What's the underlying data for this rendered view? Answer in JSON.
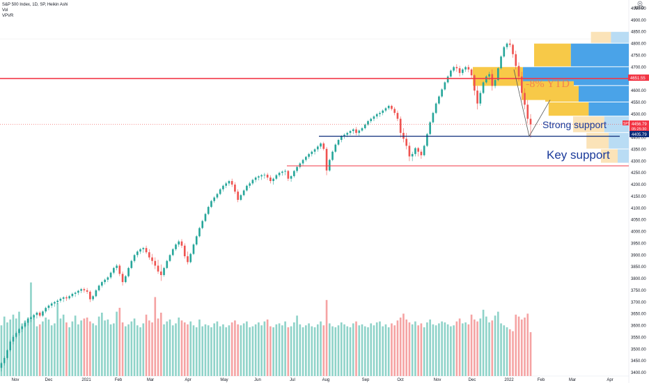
{
  "header": {
    "symbol": "S&P 500 Index, 1D, SP, Heikin Ashi",
    "indicator_vol": "Vol",
    "indicator_vpvr": "VPVR"
  },
  "colors": {
    "bull": "#26a69a",
    "bear": "#ef5350",
    "bull_vol": "#8fd3c9",
    "bear_vol": "#f5a3a3",
    "profile_up": "#f7c948",
    "profile_up_light": "#fbe3b8",
    "profile_down": "#4aa3e8",
    "profile_down_light": "#b9dcf4",
    "resistance": "#f23645",
    "support": "#0c2c7a",
    "annotation": "#1a3a9a"
  },
  "chart_data": {
    "type": "candlestick",
    "price_range": [
      3400,
      4950
    ],
    "price_ticks": [
      "4950.00",
      "4900.00",
      "4850.00",
      "4800.00",
      "4750.00",
      "4700.00",
      "4650.00",
      "4600.00",
      "4550.00",
      "4500.00",
      "4450.00",
      "4400.00",
      "4350.00",
      "4300.00",
      "4250.00",
      "4200.00",
      "4150.00",
      "4100.00",
      "4050.00",
      "4000.00",
      "3950.00",
      "3900.00",
      "3850.00",
      "3800.00",
      "3750.00",
      "3700.00",
      "3650.00",
      "3600.00",
      "3550.00",
      "3500.00",
      "3450.00",
      "3400.00"
    ],
    "time_labels": [
      "Nov",
      "Dec",
      "2021",
      "Feb",
      "Mar",
      "Apr",
      "May",
      "Jun",
      "Jul",
      "Aug",
      "Sep",
      "Oct",
      "Nov",
      "Dec",
      "2022",
      "Feb",
      "Mar",
      "Apr"
    ],
    "currency_label": "USD",
    "last_price": "4456.79",
    "countdown": "05:25:30",
    "support_price_label": "4405.79",
    "resistance_price_label": "4651.55",
    "symbol_badge": "SPX",
    "resistance_level": 4651.55,
    "strong_support_level": 4405.79,
    "key_support_level": 4280,
    "annotations": {
      "ytd": "-8% YTD",
      "strong_support": "Strong support",
      "key_support": "Key support"
    },
    "candles": [
      [
        0,
        3420,
        3445,
        3405,
        3440
      ],
      [
        1,
        3440,
        3470,
        3430,
        3462
      ],
      [
        2,
        3462,
        3500,
        3455,
        3495
      ],
      [
        3,
        3495,
        3540,
        3488,
        3532
      ],
      [
        4,
        3532,
        3560,
        3520,
        3552
      ],
      [
        5,
        3552,
        3575,
        3545,
        3568
      ],
      [
        6,
        3568,
        3590,
        3558,
        3585
      ],
      [
        7,
        3585,
        3600,
        3572,
        3596
      ],
      [
        8,
        3596,
        3620,
        3590,
        3612
      ],
      [
        9,
        3612,
        3635,
        3600,
        3628
      ],
      [
        10,
        3628,
        3640,
        3615,
        3635
      ],
      [
        11,
        3635,
        3650,
        3625,
        3645
      ],
      [
        12,
        3645,
        3660,
        3630,
        3655
      ],
      [
        13,
        3655,
        3662,
        3635,
        3642
      ],
      [
        14,
        3642,
        3665,
        3636,
        3660
      ],
      [
        15,
        3660,
        3680,
        3652,
        3675
      ],
      [
        16,
        3675,
        3690,
        3665,
        3685
      ],
      [
        17,
        3685,
        3700,
        3675,
        3694
      ],
      [
        18,
        3694,
        3705,
        3680,
        3700
      ],
      [
        19,
        3700,
        3712,
        3690,
        3706
      ],
      [
        20,
        3706,
        3720,
        3698,
        3714
      ],
      [
        21,
        3714,
        3725,
        3700,
        3720
      ],
      [
        22,
        3720,
        3728,
        3705,
        3716
      ],
      [
        23,
        3716,
        3730,
        3710,
        3725
      ],
      [
        24,
        3725,
        3740,
        3718,
        3735
      ],
      [
        25,
        3735,
        3745,
        3722,
        3740
      ],
      [
        26,
        3740,
        3752,
        3730,
        3748
      ],
      [
        27,
        3748,
        3760,
        3738,
        3755
      ],
      [
        28,
        3755,
        3762,
        3740,
        3750
      ],
      [
        29,
        3750,
        3760,
        3735,
        3744
      ],
      [
        30,
        3744,
        3750,
        3700,
        3712
      ],
      [
        31,
        3712,
        3730,
        3705,
        3725
      ],
      [
        32,
        3725,
        3755,
        3720,
        3750
      ],
      [
        33,
        3750,
        3775,
        3745,
        3770
      ],
      [
        34,
        3770,
        3790,
        3762,
        3785
      ],
      [
        35,
        3785,
        3800,
        3775,
        3795
      ],
      [
        36,
        3795,
        3810,
        3785,
        3805
      ],
      [
        37,
        3805,
        3830,
        3798,
        3825
      ],
      [
        38,
        3825,
        3850,
        3818,
        3845
      ],
      [
        39,
        3845,
        3862,
        3835,
        3855
      ],
      [
        40,
        3855,
        3862,
        3810,
        3820
      ],
      [
        41,
        3820,
        3830,
        3770,
        3785
      ],
      [
        42,
        3785,
        3815,
        3780,
        3810
      ],
      [
        43,
        3810,
        3850,
        3805,
        3845
      ],
      [
        44,
        3845,
        3880,
        3840,
        3875
      ],
      [
        45,
        3875,
        3905,
        3868,
        3900
      ],
      [
        46,
        3900,
        3920,
        3890,
        3915
      ],
      [
        47,
        3915,
        3930,
        3905,
        3925
      ],
      [
        48,
        3925,
        3935,
        3910,
        3930
      ],
      [
        49,
        3930,
        3940,
        3905,
        3912
      ],
      [
        50,
        3912,
        3925,
        3880,
        3890
      ],
      [
        51,
        3890,
        3905,
        3860,
        3875
      ],
      [
        52,
        3875,
        3890,
        3840,
        3855
      ],
      [
        53,
        3855,
        3880,
        3820,
        3830
      ],
      [
        54,
        3830,
        3860,
        3790,
        3815
      ],
      [
        55,
        3815,
        3850,
        3808,
        3845
      ],
      [
        56,
        3845,
        3880,
        3840,
        3875
      ],
      [
        57,
        3875,
        3905,
        3870,
        3900
      ],
      [
        58,
        3900,
        3930,
        3895,
        3925
      ],
      [
        59,
        3925,
        3950,
        3918,
        3945
      ],
      [
        60,
        3945,
        3965,
        3935,
        3958
      ],
      [
        61,
        3958,
        3968,
        3930,
        3940
      ],
      [
        62,
        3940,
        3950,
        3885,
        3895
      ],
      [
        63,
        3895,
        3915,
        3860,
        3870
      ],
      [
        64,
        3870,
        3910,
        3865,
        3905
      ],
      [
        65,
        3905,
        3950,
        3900,
        3945
      ],
      [
        66,
        3945,
        3985,
        3940,
        3980
      ],
      [
        67,
        3980,
        4020,
        3975,
        4015
      ],
      [
        68,
        4015,
        4050,
        4010,
        4045
      ],
      [
        69,
        4045,
        4080,
        4040,
        4075
      ],
      [
        70,
        4075,
        4110,
        4070,
        4105
      ],
      [
        71,
        4105,
        4135,
        4100,
        4130
      ],
      [
        72,
        4130,
        4150,
        4122,
        4145
      ],
      [
        73,
        4145,
        4165,
        4138,
        4160
      ],
      [
        74,
        4160,
        4185,
        4155,
        4180
      ],
      [
        75,
        4180,
        4200,
        4170,
        4195
      ],
      [
        76,
        4195,
        4212,
        4185,
        4205
      ],
      [
        77,
        4205,
        4220,
        4195,
        4215
      ],
      [
        78,
        4215,
        4225,
        4190,
        4200
      ],
      [
        79,
        4200,
        4210,
        4160,
        4170
      ],
      [
        80,
        4170,
        4180,
        4125,
        4135
      ],
      [
        81,
        4135,
        4160,
        4130,
        4155
      ],
      [
        82,
        4155,
        4180,
        4150,
        4175
      ],
      [
        83,
        4175,
        4200,
        4170,
        4195
      ],
      [
        84,
        4195,
        4212,
        4185,
        4205
      ],
      [
        85,
        4205,
        4225,
        4198,
        4220
      ],
      [
        86,
        4220,
        4235,
        4210,
        4230
      ],
      [
        87,
        4230,
        4240,
        4218,
        4235
      ],
      [
        88,
        4235,
        4245,
        4220,
        4240
      ],
      [
        89,
        4240,
        4250,
        4225,
        4242
      ],
      [
        90,
        4242,
        4250,
        4220,
        4230
      ],
      [
        91,
        4230,
        4240,
        4205,
        4215
      ],
      [
        92,
        4215,
        4230,
        4200,
        4225
      ],
      [
        93,
        4225,
        4245,
        4220,
        4240
      ],
      [
        94,
        4240,
        4255,
        4232,
        4250
      ],
      [
        95,
        4250,
        4260,
        4238,
        4255
      ],
      [
        96,
        4255,
        4265,
        4240,
        4258
      ],
      [
        97,
        4258,
        4262,
        4215,
        4225
      ],
      [
        98,
        4225,
        4240,
        4212,
        4236
      ],
      [
        99,
        4236,
        4262,
        4230,
        4258
      ],
      [
        100,
        4258,
        4280,
        4250,
        4275
      ],
      [
        101,
        4275,
        4295,
        4268,
        4290
      ],
      [
        102,
        4290,
        4310,
        4282,
        4305
      ],
      [
        103,
        4305,
        4322,
        4298,
        4318
      ],
      [
        104,
        4318,
        4335,
        4310,
        4330
      ],
      [
        105,
        4330,
        4345,
        4320,
        4340
      ],
      [
        106,
        4340,
        4355,
        4328,
        4350
      ],
      [
        107,
        4350,
        4368,
        4340,
        4362
      ],
      [
        108,
        4362,
        4380,
        4352,
        4375
      ],
      [
        109,
        4375,
        4382,
        4345,
        4352
      ],
      [
        110,
        4352,
        4360,
        4240,
        4260
      ],
      [
        111,
        4260,
        4310,
        4255,
        4305
      ],
      [
        112,
        4305,
        4345,
        4300,
        4340
      ],
      [
        113,
        4340,
        4375,
        4335,
        4370
      ],
      [
        114,
        4370,
        4395,
        4365,
        4390
      ],
      [
        115,
        4390,
        4410,
        4380,
        4405
      ],
      [
        116,
        4405,
        4418,
        4395,
        4412
      ],
      [
        117,
        4412,
        4425,
        4402,
        4420
      ],
      [
        118,
        4420,
        4432,
        4410,
        4428
      ],
      [
        119,
        4428,
        4440,
        4415,
        4435
      ],
      [
        120,
        4435,
        4445,
        4410,
        4420
      ],
      [
        121,
        4420,
        4435,
        4405,
        4430
      ],
      [
        122,
        4430,
        4445,
        4425,
        4440
      ],
      [
        123,
        4440,
        4460,
        4435,
        4455
      ],
      [
        124,
        4455,
        4475,
        4450,
        4470
      ],
      [
        125,
        4470,
        4485,
        4462,
        4480
      ],
      [
        126,
        4480,
        4495,
        4470,
        4490
      ],
      [
        127,
        4490,
        4505,
        4480,
        4500
      ],
      [
        128,
        4500,
        4512,
        4488,
        4505
      ],
      [
        129,
        4505,
        4520,
        4495,
        4515
      ],
      [
        130,
        4515,
        4530,
        4508,
        4525
      ],
      [
        131,
        4525,
        4540,
        4518,
        4535
      ],
      [
        132,
        4535,
        4540,
        4515,
        4522
      ],
      [
        133,
        4522,
        4530,
        4495,
        4505
      ],
      [
        134,
        4505,
        4515,
        4470,
        4480
      ],
      [
        135,
        4480,
        4490,
        4400,
        4420
      ],
      [
        136,
        4420,
        4440,
        4380,
        4395
      ],
      [
        137,
        4395,
        4420,
        4350,
        4365
      ],
      [
        138,
        4365,
        4380,
        4300,
        4320
      ],
      [
        139,
        4320,
        4340,
        4300,
        4330
      ],
      [
        140,
        4330,
        4360,
        4320,
        4355
      ],
      [
        141,
        4355,
        4360,
        4320,
        4340
      ],
      [
        142,
        4340,
        4350,
        4310,
        4325
      ],
      [
        143,
        4325,
        4370,
        4320,
        4365
      ],
      [
        144,
        4365,
        4420,
        4360,
        4415
      ],
      [
        145,
        4415,
        4470,
        4410,
        4465
      ],
      [
        146,
        4465,
        4510,
        4460,
        4505
      ],
      [
        147,
        4505,
        4550,
        4500,
        4545
      ],
      [
        148,
        4545,
        4580,
        4540,
        4575
      ],
      [
        149,
        4575,
        4610,
        4570,
        4605
      ],
      [
        150,
        4605,
        4640,
        4600,
        4635
      ],
      [
        151,
        4635,
        4665,
        4630,
        4660
      ],
      [
        152,
        4660,
        4690,
        4655,
        4685
      ],
      [
        153,
        4685,
        4705,
        4678,
        4700
      ],
      [
        154,
        4700,
        4712,
        4680,
        4695
      ],
      [
        155,
        4695,
        4705,
        4660,
        4675
      ],
      [
        156,
        4675,
        4695,
        4665,
        4690
      ],
      [
        157,
        4690,
        4705,
        4680,
        4700
      ],
      [
        158,
        4700,
        4710,
        4678,
        4690
      ],
      [
        159,
        4690,
        4695,
        4650,
        4665
      ],
      [
        160,
        4665,
        4670,
        4580,
        4600
      ],
      [
        161,
        4600,
        4620,
        4520,
        4545
      ],
      [
        162,
        4545,
        4600,
        4535,
        4590
      ],
      [
        163,
        4590,
        4640,
        4585,
        4635
      ],
      [
        164,
        4635,
        4665,
        4630,
        4660
      ],
      [
        165,
        4660,
        4680,
        4645,
        4670
      ],
      [
        166,
        4670,
        4690,
        4600,
        4620
      ],
      [
        167,
        4620,
        4650,
        4610,
        4645
      ],
      [
        168,
        4645,
        4700,
        4640,
        4695
      ],
      [
        169,
        4695,
        4750,
        4690,
        4745
      ],
      [
        170,
        4745,
        4790,
        4740,
        4785
      ],
      [
        171,
        4785,
        4805,
        4775,
        4800
      ],
      [
        172,
        4800,
        4818,
        4785,
        4795
      ],
      [
        173,
        4795,
        4800,
        4740,
        4755
      ],
      [
        174,
        4755,
        4770,
        4690,
        4705
      ],
      [
        175,
        4705,
        4720,
        4640,
        4660
      ],
      [
        176,
        4660,
        4680,
        4560,
        4590
      ],
      [
        177,
        4590,
        4610,
        4520,
        4540
      ],
      [
        178,
        4540,
        4560,
        4460,
        4480
      ],
      [
        179,
        4480,
        4500,
        4400,
        4456
      ]
    ],
    "volume_max": 10,
    "volumes": [
      5.2,
      6.1,
      5.5,
      5.8,
      6.3,
      5.9,
      6.6,
      5.4,
      5.7,
      6.0,
      9.6,
      6.2,
      5.1,
      5.3,
      5.6,
      6.0,
      5.8,
      5.2,
      5.4,
      7.5,
      5.9,
      6.3,
      5.5,
      5.0,
      5.6,
      6.2,
      5.3,
      5.7,
      5.9,
      6.0,
      5.6,
      5.4,
      5.2,
      6.1,
      6.5,
      5.7,
      5.8,
      5.3,
      5.4,
      6.6,
      7.0,
      5.5,
      5.1,
      5.3,
      5.6,
      5.9,
      5.2,
      5.0,
      5.4,
      6.3,
      5.7,
      5.5,
      8.1,
      5.9,
      6.5,
      5.3,
      5.6,
      5.8,
      5.2,
      5.4,
      6.0,
      5.7,
      5.5,
      5.3,
      5.6,
      5.2,
      5.0,
      5.8,
      5.1,
      5.3,
      5.2,
      5.0,
      5.4,
      5.6,
      5.1,
      5.3,
      5.0,
      5.2,
      5.5,
      5.7,
      5.3,
      5.2,
      5.4,
      5.6,
      5.0,
      5.1,
      5.3,
      5.5,
      5.2,
      5.6,
      5.8,
      5.1,
      5.0,
      5.3,
      5.4,
      5.2,
      5.6,
      5.0,
      5.1,
      5.5,
      6.2,
      5.3,
      5.0,
      5.2,
      5.4,
      5.1,
      5.0,
      5.3,
      5.6,
      5.2,
      7.8,
      5.4,
      5.1,
      5.0,
      5.2,
      5.5,
      5.3,
      5.1,
      5.0,
      5.4,
      5.6,
      5.2,
      5.3,
      5.1,
      5.0,
      5.4,
      5.2,
      5.5,
      5.6,
      5.1,
      5.3,
      5.0,
      5.4,
      5.2,
      5.7,
      6.0,
      6.4,
      5.8,
      5.5,
      5.3,
      5.6,
      5.2,
      5.4,
      5.0,
      5.5,
      5.8,
      5.3,
      5.2,
      5.4,
      5.6,
      5.5,
      5.3,
      5.1,
      5.2,
      5.6,
      5.9,
      5.4,
      5.5,
      5.3,
      6.3,
      5.8,
      5.6,
      5.9,
      6.8,
      6.1,
      5.5,
      5.7,
      6.2,
      6.6,
      5.4,
      5.2,
      5.0,
      4.8,
      4.6,
      6.3,
      6.1,
      5.8,
      6.0,
      6.4,
      4.5
    ]
  }
}
